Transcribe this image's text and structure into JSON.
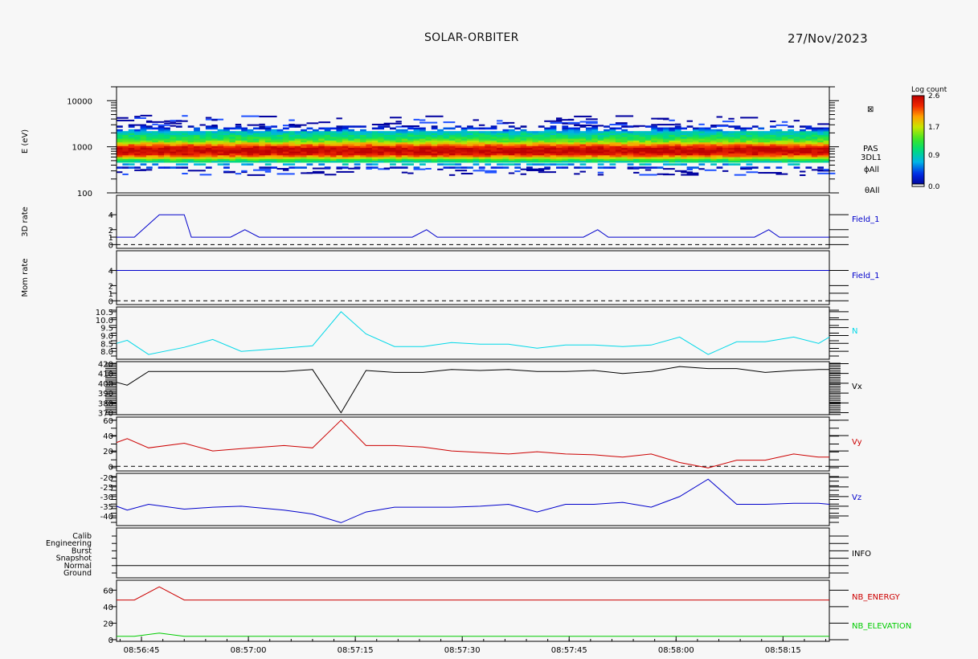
{
  "header": {
    "title": "SOLAR-ORBITER",
    "date": "27/Nov/2023"
  },
  "colors": {
    "background": "#f7f7f7",
    "frame": "#000000",
    "blue": "#0000cc",
    "cyan": "#00d8e8",
    "black": "#000000",
    "red": "#cc0000",
    "green": "#00cc00"
  },
  "time_axis": {
    "tick_labels": [
      "08:56:45",
      "08:57:00",
      "08:57:15",
      "08:57:30",
      "08:57:45",
      "08:58:00",
      "08:58:15"
    ],
    "tick_seconds": [
      0,
      15,
      30,
      45,
      60,
      75,
      90
    ],
    "range_seconds": [
      -3.5,
      96.5
    ]
  },
  "chart_data": [
    {
      "type": "heatmap",
      "name": "energy-spectrogram",
      "ylabel": "E (eV)",
      "y_scale": "log",
      "ylim": [
        100,
        20000
      ],
      "y_ticks": [
        "10000",
        "1000",
        "100"
      ],
      "y_tick_values": [
        10000,
        1000,
        100
      ],
      "colorbar": {
        "title": "Log count",
        "ticks": [
          "2.6",
          "1.7",
          "0.9",
          "0.0"
        ],
        "tick_values": [
          2.6,
          1.7,
          0.9,
          0.0
        ]
      },
      "band_profile": {
        "log_energy": [
          2.55,
          2.62,
          2.68,
          2.72,
          2.76,
          2.8,
          2.84,
          2.88,
          2.92,
          2.96,
          3.0,
          3.04,
          3.08,
          3.12,
          3.16,
          3.2,
          3.24,
          3.28,
          3.32,
          3.36,
          3.4,
          3.44
        ],
        "log_count": [
          0.3,
          0.7,
          1.0,
          1.3,
          1.7,
          2.1,
          2.4,
          2.55,
          2.6,
          2.55,
          2.4,
          2.1,
          1.8,
          1.5,
          1.3,
          1.15,
          1.05,
          0.95,
          0.8,
          0.55,
          0.3,
          0.15
        ]
      },
      "right_labels": [
        "⊠",
        "PAS",
        "3DL1",
        "ϕAll",
        "θAll"
      ]
    },
    {
      "type": "line",
      "name": "3d-rate",
      "ylabel": "3D rate",
      "ylim": [
        -0.5,
        6.6
      ],
      "y_ticks": [
        "4",
        "2",
        "1",
        "0"
      ],
      "y_tick_values": [
        4,
        2,
        1,
        0
      ],
      "series": [
        {
          "name": "Field_1",
          "color": "blue",
          "x": [
            -3.5,
            -1,
            2.5,
            6,
            7,
            9,
            12.5,
            14.5,
            16.5,
            38,
            40,
            41.5,
            62,
            64,
            65.5,
            86,
            88,
            89.5,
            96.5
          ],
          "y": [
            1,
            1,
            4,
            4,
            1,
            1,
            1,
            2,
            1,
            1,
            2,
            1,
            1,
            2,
            1,
            1,
            2,
            1,
            1
          ]
        }
      ],
      "reference_line": 0
    },
    {
      "type": "line",
      "name": "mom-rate",
      "ylabel": "Mom rate",
      "ylim": [
        -0.5,
        6.6
      ],
      "y_ticks": [
        "4",
        "2",
        "1",
        "0"
      ],
      "y_tick_values": [
        4,
        2,
        1,
        0
      ],
      "series": [
        {
          "name": "Field_1",
          "color": "blue",
          "x": [
            -3.5,
            96.5
          ],
          "y": [
            4,
            4
          ]
        }
      ],
      "reference_line": 0
    },
    {
      "type": "line",
      "name": "density",
      "ylim": [
        7.5,
        10.8
      ],
      "y_ticks": [
        "10.5",
        "10.0",
        "9.5",
        "9.0",
        "8.5",
        "8.0"
      ],
      "y_tick_values": [
        10.5,
        10.0,
        9.5,
        9.0,
        8.5,
        8.0
      ],
      "series": [
        {
          "name": "N",
          "color": "cyan",
          "x": [
            -3.5,
            -2,
            1,
            6,
            10,
            14,
            20,
            24,
            28,
            31.5,
            35.5,
            39.5,
            43.5,
            47.5,
            51.5,
            55.5,
            59.5,
            63.5,
            67.5,
            71.5,
            75.5,
            79.5,
            83.5,
            87.5,
            91.5,
            95,
            96.5
          ],
          "y": [
            8.5,
            8.7,
            7.8,
            8.25,
            8.75,
            8.0,
            8.2,
            8.35,
            10.5,
            9.1,
            8.3,
            8.3,
            8.55,
            8.45,
            8.45,
            8.2,
            8.4,
            8.4,
            8.3,
            8.4,
            8.9,
            7.8,
            8.6,
            8.6,
            8.9,
            8.5,
            8.9
          ]
        }
      ]
    },
    {
      "type": "line",
      "name": "vx",
      "ylim": [
        368,
        422
      ],
      "y_ticks": [
        "420",
        "410",
        "400",
        "390",
        "380",
        "370"
      ],
      "y_tick_values": [
        420,
        410,
        400,
        390,
        380,
        370
      ],
      "series": [
        {
          "name": "Vx",
          "color": "black",
          "x": [
            -3.5,
            -2,
            1,
            6,
            10,
            14,
            20,
            24,
            28,
            31.5,
            35.5,
            39.5,
            43.5,
            47.5,
            51.5,
            55.5,
            59.5,
            63.5,
            67.5,
            71.5,
            75.5,
            79.5,
            83.5,
            87.5,
            91.5,
            95,
            96.5
          ],
          "y": [
            401,
            398,
            412,
            412,
            412,
            412,
            412,
            414,
            370,
            413,
            411,
            411,
            414,
            413,
            414,
            412,
            412,
            413,
            410,
            412,
            417,
            415,
            415,
            411,
            413,
            414,
            414
          ]
        }
      ]
    },
    {
      "type": "line",
      "name": "vy",
      "ylim": [
        -6,
        64
      ],
      "y_ticks": [
        "60",
        "40",
        "20",
        "0"
      ],
      "y_tick_values": [
        60,
        40,
        20,
        0
      ],
      "series": [
        {
          "name": "Vy",
          "color": "red",
          "x": [
            -3.5,
            -2,
            1,
            6,
            10,
            14,
            20,
            24,
            28,
            31.5,
            35.5,
            39.5,
            43.5,
            47.5,
            51.5,
            55.5,
            59.5,
            63.5,
            67.5,
            71.5,
            75.5,
            79.5,
            83.5,
            87.5,
            91.5,
            95,
            96.5
          ],
          "y": [
            31,
            36,
            24,
            30,
            20,
            23,
            27,
            24,
            60,
            27,
            27,
            25,
            20,
            18,
            16,
            19,
            16,
            15,
            12,
            16,
            5,
            -2,
            8,
            8,
            16,
            12,
            12
          ]
        }
      ],
      "reference_line": 0
    },
    {
      "type": "line",
      "name": "vz",
      "ylim": [
        -45,
        -18
      ],
      "y_ticks": [
        "-20",
        "-25",
        "-30",
        "-35",
        "-40"
      ],
      "y_tick_values": [
        -20,
        -25,
        -30,
        -35,
        -40
      ],
      "series": [
        {
          "name": "Vz",
          "color": "blue",
          "x": [
            -3.5,
            -2,
            1,
            6,
            10,
            14,
            20,
            24,
            28,
            31.5,
            35.5,
            39.5,
            43.5,
            47.5,
            51.5,
            55.5,
            59.5,
            63.5,
            67.5,
            71.5,
            75.5,
            79.5,
            83.5,
            87.5,
            91.5,
            95,
            96.5
          ],
          "y": [
            -35,
            -37,
            -34,
            -36.5,
            -35.5,
            -35,
            -37,
            -39,
            -43.5,
            -38,
            -35.5,
            -35.5,
            -35.5,
            -35,
            -34,
            -38,
            -34,
            -34,
            -33,
            -35.5,
            -30,
            -21,
            -34,
            -34,
            -33.5,
            -33.5,
            -34
          ]
        }
      ]
    },
    {
      "type": "table",
      "name": "info-modes",
      "row_labels": [
        "Calib",
        "Engineering",
        "Burst",
        "Snapshot",
        "Normal",
        "Ground"
      ],
      "active_row": "Normal",
      "right_label": "INFO"
    },
    {
      "type": "line",
      "name": "nb-channels",
      "ylim": [
        -2,
        72
      ],
      "y_ticks": [
        "60",
        "40",
        "20",
        "0"
      ],
      "y_tick_values": [
        60,
        40,
        20,
        0
      ],
      "series": [
        {
          "name": "NB_ENERGY",
          "color": "red",
          "x": [
            -3.5,
            -1,
            2.5,
            6,
            96.5
          ],
          "y": [
            48,
            48,
            64,
            48,
            48
          ]
        },
        {
          "name": "NB_ELEVATION",
          "color": "green",
          "x": [
            -3.5,
            -1,
            2.5,
            6,
            96.5
          ],
          "y": [
            4,
            4,
            8,
            4,
            4
          ]
        }
      ]
    }
  ]
}
